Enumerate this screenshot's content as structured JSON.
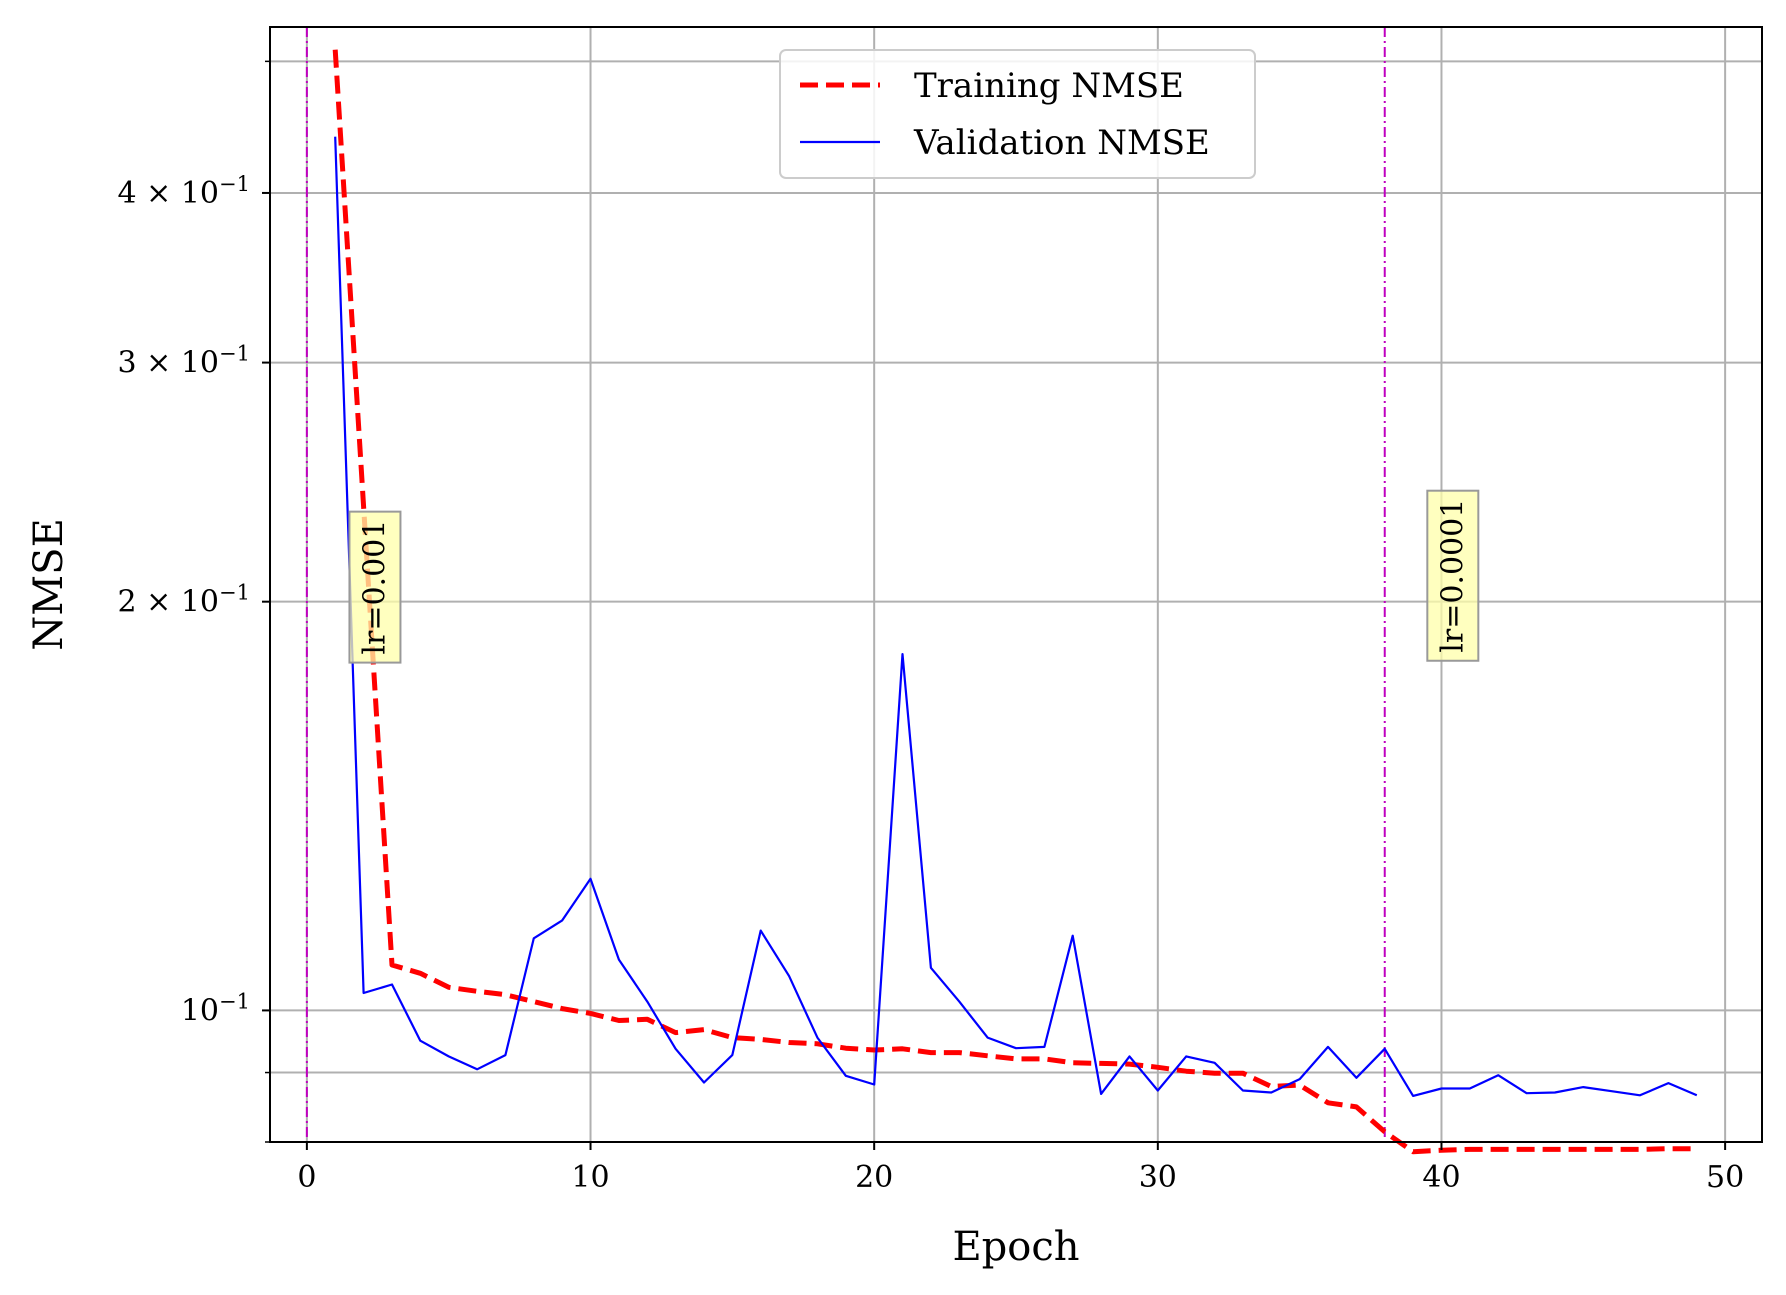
{
  "chart_data": {
    "type": "line",
    "title": "",
    "xlabel": "Epoch",
    "ylabel": "NMSE",
    "xscale": "linear",
    "yscale": "log",
    "xlim": [
      -1.3,
      51.3
    ],
    "ylim": [
      0.08,
      0.53
    ],
    "grid": true,
    "legend_position": "top-center",
    "xticks": [
      0,
      10,
      20,
      30,
      40,
      50
    ],
    "xtick_labels": [
      "0",
      "10",
      "20",
      "30",
      "40",
      "50"
    ],
    "yticks": [
      0.1,
      0.2,
      0.3,
      0.4
    ],
    "ytick_labels": [
      {
        "base": "10",
        "exp": "−1"
      },
      {
        "base": "2 × 10",
        "exp": "−1"
      },
      {
        "base": "3 × 10",
        "exp": "−1"
      },
      {
        "base": "4 × 10",
        "exp": "−1"
      }
    ],
    "minor_yticks": [
      0.08,
      0.09,
      0.5
    ],
    "series": [
      {
        "name": "Training NMSE",
        "color": "#ff0000",
        "style": "dashed",
        "x": [
          1,
          2,
          3,
          4,
          5,
          6,
          7,
          8,
          9,
          10,
          11,
          12,
          13,
          14,
          15,
          16,
          17,
          18,
          19,
          20,
          21,
          22,
          23,
          24,
          25,
          26,
          27,
          28,
          29,
          30,
          31,
          32,
          33,
          34,
          35,
          36,
          37,
          38,
          39,
          40,
          41,
          42,
          43,
          44,
          45,
          46,
          47,
          48,
          49
        ],
        "values": [
          0.51,
          0.235,
          0.108,
          0.1065,
          0.104,
          0.1033,
          0.1027,
          0.1015,
          0.1003,
          0.0995,
          0.0983,
          0.0985,
          0.0963,
          0.0968,
          0.0955,
          0.0952,
          0.0947,
          0.0945,
          0.0938,
          0.0935,
          0.0937,
          0.0931,
          0.0931,
          0.0926,
          0.0921,
          0.0921,
          0.0915,
          0.0914,
          0.0913,
          0.0908,
          0.0902,
          0.0899,
          0.0899,
          0.0879,
          0.0881,
          0.0855,
          0.0849,
          0.0814,
          0.0787,
          0.0789,
          0.079,
          0.079,
          0.079,
          0.079,
          0.079,
          0.079,
          0.079,
          0.0791,
          0.0791
        ]
      },
      {
        "name": "Validation NMSE",
        "color": "#0000ff",
        "style": "solid",
        "x": [
          1,
          2,
          3,
          4,
          5,
          6,
          7,
          8,
          9,
          10,
          11,
          12,
          13,
          14,
          15,
          16,
          17,
          18,
          19,
          20,
          21,
          22,
          23,
          24,
          25,
          26,
          27,
          28,
          29,
          30,
          31,
          32,
          33,
          34,
          35,
          36,
          37,
          38,
          39,
          40,
          41,
          42,
          43,
          44,
          45,
          46,
          47,
          48,
          49
        ],
        "values": [
          0.44,
          0.103,
          0.1045,
          0.095,
          0.0925,
          0.0905,
          0.0927,
          0.113,
          0.1165,
          0.125,
          0.109,
          0.1015,
          0.0937,
          0.0885,
          0.0927,
          0.1145,
          0.106,
          0.0955,
          0.0895,
          0.0882,
          0.183,
          0.1075,
          0.1015,
          0.0955,
          0.0938,
          0.094,
          0.1135,
          0.0868,
          0.0925,
          0.0873,
          0.0925,
          0.0915,
          0.0873,
          0.087,
          0.089,
          0.094,
          0.0892,
          0.0937,
          0.0865,
          0.0876,
          0.0876,
          0.0896,
          0.0869,
          0.087,
          0.0878,
          0.0872,
          0.0866,
          0.0884,
          0.0866
        ]
      }
    ],
    "vlines": [
      {
        "x": 0,
        "color": "#bf00bf"
      },
      {
        "x": 38,
        "color": "#bf00bf"
      }
    ],
    "annotations": [
      {
        "x": 2.4,
        "y": 0.205,
        "text": "lr=0.001",
        "rotation": 90
      },
      {
        "x": 40.4,
        "y": 0.209,
        "text": "lr=0.0001",
        "rotation": 90
      }
    ],
    "grid_color": "#b0b0b0",
    "annotation_box_color": "#ffffaa"
  }
}
